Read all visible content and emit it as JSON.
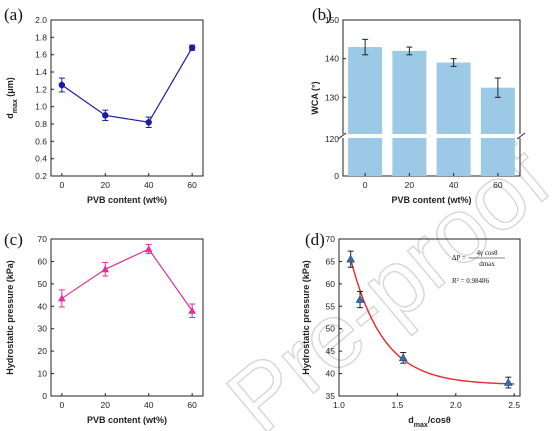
{
  "watermark": "Pre-proof",
  "chart_data": [
    {
      "panel_label": "(a)",
      "type": "line",
      "xlabel": "PVB content (wt%)",
      "ylabel_main": "d",
      "ylabel_sub": "max",
      "ylabel_unit": " (μm)",
      "color": "#1a1aa6",
      "marker": "circle",
      "x": [
        0,
        20,
        40,
        60
      ],
      "y": [
        1.25,
        0.9,
        0.82,
        1.68
      ],
      "yerr": [
        0.08,
        0.06,
        0.06,
        0.03
      ],
      "xlim": [
        -5,
        65
      ],
      "ylim": [
        0.2,
        2.0
      ],
      "xticks": [
        "0",
        "20",
        "40",
        "60"
      ],
      "yticks": [
        "0.2",
        "0.4",
        "0.6",
        "0.8",
        "1.0",
        "1.2",
        "1.4",
        "1.6",
        "1.8",
        "2.0"
      ]
    },
    {
      "panel_label": "(b)",
      "type": "bar",
      "xlabel": "PVB content (wt%)",
      "ylabel": "WCA (°)",
      "color": "#9ccae6",
      "categories": [
        "0",
        "20",
        "40",
        "60"
      ],
      "values": [
        143,
        142,
        139,
        132.5
      ],
      "yerr": [
        2,
        1,
        1,
        2.5
      ],
      "ylim": [
        120,
        150
      ],
      "axis_break": true,
      "yticks": [
        "130",
        "140",
        "150"
      ],
      "ytick_below_break": "120",
      "ytick_zero": "0"
    },
    {
      "panel_label": "(c)",
      "type": "line",
      "xlabel": "PVB content (wt%)",
      "ylabel": "Hydrostatic pressure (kPa)",
      "color": "#e0309a",
      "marker": "triangle",
      "x": [
        0,
        20,
        40,
        60
      ],
      "y": [
        43.5,
        56.5,
        65.5,
        38
      ],
      "yerr": [
        3.8,
        3,
        2,
        3
      ],
      "xlim": [
        -5,
        65
      ],
      "ylim": [
        0,
        70
      ],
      "xticks": [
        "0",
        "20",
        "40",
        "60"
      ],
      "yticks": [
        "0",
        "10",
        "20",
        "30",
        "40",
        "50",
        "60",
        "70"
      ]
    },
    {
      "panel_label": "(d)",
      "type": "scatter",
      "xlabel_main": "d",
      "xlabel_sub": "max",
      "xlabel_rest": "/cosθ",
      "ylabel": "Hydrostatic pressure (kPa)",
      "marker_color": "#2f6fb0",
      "fit_color": "#e8282a",
      "x": [
        1.1,
        1.18,
        1.55,
        2.45
      ],
      "y": [
        65.5,
        56.5,
        43.5,
        38
      ],
      "yerr": [
        1.8,
        1.8,
        1.2,
        1.2
      ],
      "xlim": [
        1.0,
        2.55
      ],
      "ylim": [
        35,
        70
      ],
      "xticks": [
        "1.0",
        "1.5",
        "2.0",
        "2.5"
      ],
      "yticks": [
        "35",
        "40",
        "45",
        "50",
        "55",
        "60",
        "65",
        "70"
      ],
      "fit": {
        "y0": 37.5,
        "A": 28,
        "x0": 1.1,
        "t": 0.28
      },
      "equation_lhs": "ΔP = −",
      "equation_num": "4γ cosθ",
      "equation_den": "dmax",
      "r2": "R² = 0.98486"
    }
  ]
}
